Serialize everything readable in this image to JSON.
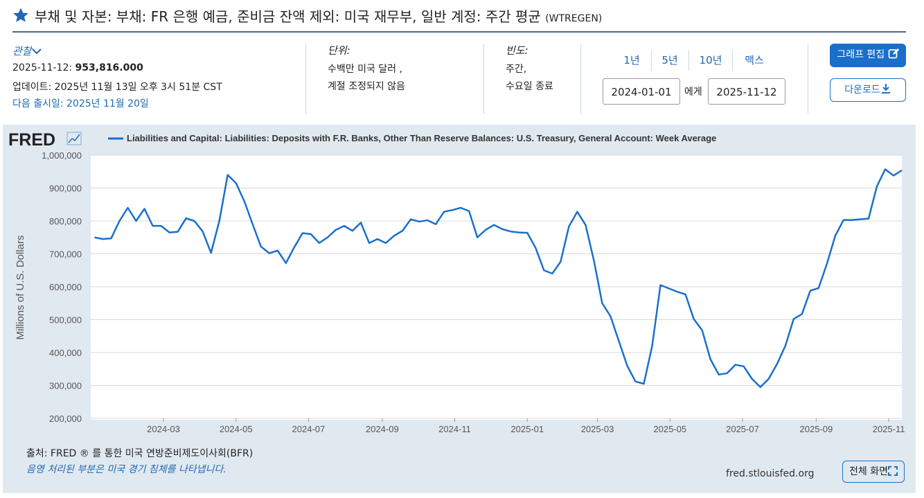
{
  "header": {
    "title": "부채 및 자본: 부채: FR 은행 예금, 준비금 잔액 제외: 미국 재무부, 일반 계정: 주간 평균",
    "series_id": "(WTREGEN)"
  },
  "info": {
    "observation_label": "관찰",
    "observation_date": "2025-11-12:",
    "observation_value": "953,816.000",
    "updated": "업데이트: 2025년 11월 13일 오후 3시 51분 CST",
    "next_release": "다음 출시일: 2025년 11월 20일",
    "units_label": "단위:",
    "units_lines": [
      "수백만 미국 달러 ,",
      "계절 조정되지 않음"
    ],
    "frequency_label": "빈도:",
    "frequency_lines": [
      "주간,",
      "수요일 종료"
    ]
  },
  "controls": {
    "ranges": [
      "1년",
      "5년",
      "10년",
      "맥스"
    ],
    "start_date": "2024-01-01",
    "to_label": "에게",
    "end_date": "2025-11-12",
    "edit_button": "그래프 편집",
    "download_button": "다운로드"
  },
  "chart_data": {
    "type": "line",
    "logo": "FRED",
    "y_label": "Millions of U.S. Dollars",
    "xlim": [
      "2024-01-01",
      "2025-11-12"
    ],
    "xticks": [
      "2024-03",
      "2024-05",
      "2024-07",
      "2024-09",
      "2024-11",
      "2025-01",
      "2025-03",
      "2025-05",
      "2025-07",
      "2025-09",
      "2025-11"
    ],
    "ylim": [
      200000,
      1000000
    ],
    "yticks": [
      {
        "value": 200000,
        "label": "200,000"
      },
      {
        "value": 300000,
        "label": "300,000"
      },
      {
        "value": 400000,
        "label": "400,000"
      },
      {
        "value": 500000,
        "label": "500,000"
      },
      {
        "value": 600000,
        "label": "600,000"
      },
      {
        "value": 700000,
        "label": "700,000"
      },
      {
        "value": 800000,
        "label": "800,000"
      },
      {
        "value": 900000,
        "label": "900,000"
      },
      {
        "value": 1000000,
        "label": "1,000,000"
      }
    ],
    "grid": true,
    "x": [
      "2024-01-03",
      "2024-01-10",
      "2024-01-17",
      "2024-01-24",
      "2024-01-31",
      "2024-02-07",
      "2024-02-14",
      "2024-02-21",
      "2024-02-28",
      "2024-03-06",
      "2024-03-13",
      "2024-03-20",
      "2024-03-27",
      "2024-04-03",
      "2024-04-10",
      "2024-04-17",
      "2024-04-24",
      "2024-05-01",
      "2024-05-08",
      "2024-05-15",
      "2024-05-22",
      "2024-05-29",
      "2024-06-05",
      "2024-06-12",
      "2024-06-19",
      "2024-06-26",
      "2024-07-03",
      "2024-07-10",
      "2024-07-17",
      "2024-07-24",
      "2024-07-31",
      "2024-08-07",
      "2024-08-14",
      "2024-08-21",
      "2024-08-28",
      "2024-09-04",
      "2024-09-11",
      "2024-09-18",
      "2024-09-25",
      "2024-10-02",
      "2024-10-09",
      "2024-10-16",
      "2024-10-23",
      "2024-10-30",
      "2024-11-06",
      "2024-11-13",
      "2024-11-20",
      "2024-11-27",
      "2024-12-04",
      "2024-12-11",
      "2024-12-18",
      "2024-12-25",
      "2025-01-01",
      "2025-01-08",
      "2025-01-15",
      "2025-01-22",
      "2025-01-29",
      "2025-02-05",
      "2025-02-12",
      "2025-02-19",
      "2025-02-26",
      "2025-03-05",
      "2025-03-12",
      "2025-03-19",
      "2025-03-26",
      "2025-04-02",
      "2025-04-09",
      "2025-04-16",
      "2025-04-23",
      "2025-04-30",
      "2025-05-07",
      "2025-05-14",
      "2025-05-21",
      "2025-05-28",
      "2025-06-04",
      "2025-06-11",
      "2025-06-18",
      "2025-06-25",
      "2025-07-02",
      "2025-07-09",
      "2025-07-16",
      "2025-07-23",
      "2025-07-30",
      "2025-08-06",
      "2025-08-13",
      "2025-08-20",
      "2025-08-27",
      "2025-09-03",
      "2025-09-10",
      "2025-09-17",
      "2025-09-24",
      "2025-10-01",
      "2025-10-08",
      "2025-10-15",
      "2025-10-22",
      "2025-10-29",
      "2025-11-05",
      "2025-11-12"
    ],
    "series": [
      {
        "name": "Liabilities and Capital: Liabilities: Deposits with F.R. Banks, Other Than Reserve Balances: U.S. Treasury, General Account: Week Average",
        "color": "#1a6fc9",
        "values": [
          750000,
          745000,
          747000,
          800000,
          840000,
          800000,
          837000,
          785000,
          785000,
          765000,
          767000,
          808000,
          800000,
          768000,
          703000,
          800000,
          940000,
          915000,
          860000,
          790000,
          722000,
          702000,
          710000,
          672000,
          720000,
          763000,
          760000,
          733000,
          750000,
          773000,
          785000,
          770000,
          795000,
          733000,
          745000,
          733000,
          755000,
          770000,
          805000,
          798000,
          802000,
          790000,
          828000,
          833000,
          840000,
          830000,
          750000,
          773000,
          788000,
          775000,
          768000,
          765000,
          764000,
          718000,
          650000,
          640000,
          676000,
          783000,
          828000,
          788000,
          680000,
          550000,
          510000,
          435000,
          360000,
          312000,
          305000,
          420000,
          605000,
          595000,
          585000,
          577000,
          502000,
          468000,
          380000,
          333000,
          337000,
          363000,
          358000,
          320000,
          295000,
          320000,
          365000,
          420000,
          502000,
          517000,
          588000,
          596000,
          670000,
          755000,
          803000,
          803000,
          805000,
          807000,
          905000,
          957000,
          938000,
          953816
        ]
      }
    ]
  },
  "footer": {
    "source": "출처: FRED ® 를 통한 미국 연방준비제도이사회(BFR)",
    "recession_note": "음영 처리된 부분은 미국 경기 침체를 나타냅니다.",
    "site": "fred.stlouisfed.org",
    "fullscreen_button": "전체 화면"
  }
}
